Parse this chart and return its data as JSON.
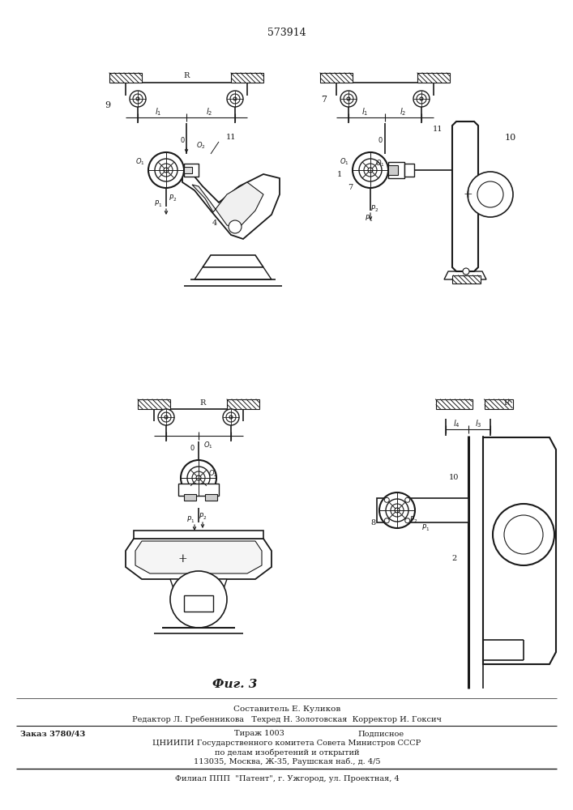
{
  "patent_number": "573914",
  "fig_label": "Фиг. 3",
  "footer_line1": "Составитель Е. Куликов",
  "footer_line2": "Редактор Л. Гребенникова   Техред Н. Золотовская  Корректор И. Гоксич",
  "footer_line3_a": "Заказ 3780/43",
  "footer_line3_b": "Тираж 1003",
  "footer_line3_c": "Подписное",
  "footer_line4": "ЦНИИПИ Государственного комитета Совета Министров СССР",
  "footer_line5": "по делам изобретений и открытий",
  "footer_line6": "113035, Москва, Ж-35, Раушская наб., д. 4/5",
  "footer_line7": "Филиал ППП  \"Патент\", г. Ужгород, ул. Проектная, 4",
  "bg_color": "#ffffff",
  "line_color": "#1a1a1a"
}
